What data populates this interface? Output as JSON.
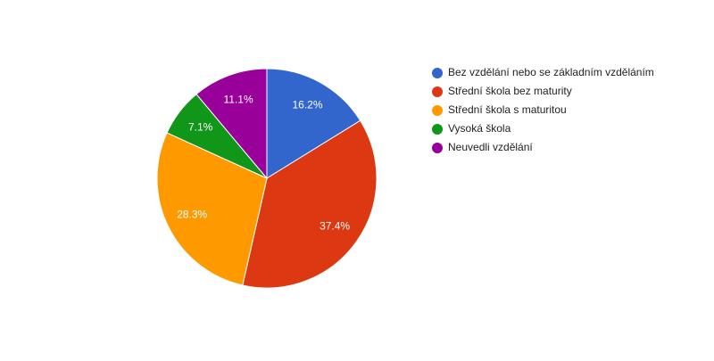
{
  "chart_data": {
    "type": "pie",
    "categories": [
      "Bez vzdělání nebo se základním vzděláním",
      "Střední škola bez maturity",
      "Střední škola s maturitou",
      "Vysoká škola",
      "Neuvedli vzdělání"
    ],
    "values": [
      16.2,
      37.4,
      28.3,
      7.1,
      11.1
    ],
    "value_labels": [
      "16.2%",
      "37.4%",
      "28.3%",
      "7.1%",
      "11.1%"
    ],
    "colors": [
      "#3366cc",
      "#dc3912",
      "#ff9900",
      "#109618",
      "#990099"
    ],
    "legend": "right"
  }
}
